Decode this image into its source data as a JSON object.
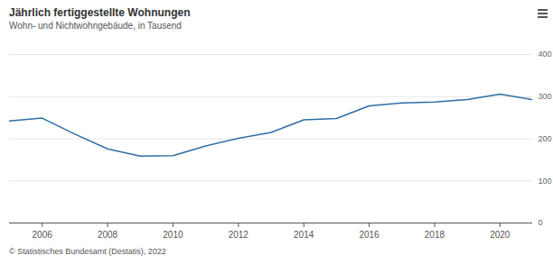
{
  "chart_data": {
    "type": "line",
    "title": "Jährlich fertiggestellte Wohnungen",
    "subtitle": "Wohn- und Nichtwohngebäude, in Tausend",
    "caption": "© Statistisches Bundesamt (Destatis), 2022",
    "x": [
      2005,
      2006,
      2007,
      2008,
      2009,
      2010,
      2011,
      2012,
      2013,
      2014,
      2015,
      2016,
      2017,
      2018,
      2019,
      2020,
      2021
    ],
    "values": [
      242,
      249,
      211,
      176,
      159,
      160,
      183,
      201,
      215,
      245,
      248,
      278,
      285,
      287,
      293,
      306,
      293
    ],
    "color": "#2f6ea5",
    "xlim": [
      2005,
      2021
    ],
    "xticks": [
      2006,
      2008,
      2010,
      2012,
      2014,
      2016,
      2018,
      2020
    ],
    "ylim": [
      0,
      400
    ],
    "yticks": [
      0,
      100,
      200,
      300,
      400
    ],
    "grid": true
  }
}
